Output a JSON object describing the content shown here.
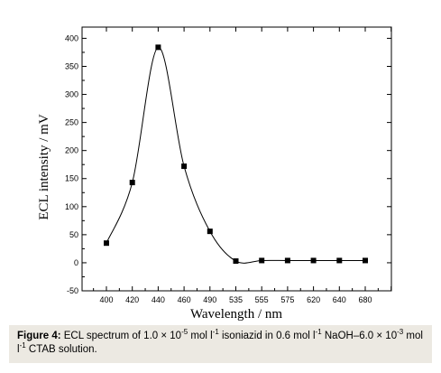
{
  "chart_data": {
    "type": "scatter",
    "xlabel": "Wavelength / nm",
    "ylabel": "ECL intensity / mV",
    "categories": [
      "400",
      "420",
      "440",
      "460",
      "490",
      "535",
      "555",
      "575",
      "620",
      "640",
      "680"
    ],
    "values": [
      35,
      143,
      384,
      172,
      56,
      3,
      4,
      4,
      4,
      4,
      4
    ],
    "ylim": [
      -50,
      420
    ],
    "yticks": [
      -50,
      0,
      50,
      100,
      150,
      200,
      250,
      300,
      350,
      400
    ],
    "fit_line": true,
    "marker_color": "#000000",
    "line_color": "#000000"
  },
  "caption": {
    "figure_label": "Figure 4:",
    "text_part1": " ECL spectrum of 1.0 × 10",
    "sup1": "-5",
    "text_part2": " mol l",
    "sup2": "-1",
    "text_part3": " isoniazid in 0.6 mol l",
    "sup3": "-1",
    "text_part4": " NaOH–6.0 × 10",
    "sup4": "-3",
    "text_part5": " mol l",
    "sup5": "-1",
    "text_part6": " CTAB solution."
  }
}
